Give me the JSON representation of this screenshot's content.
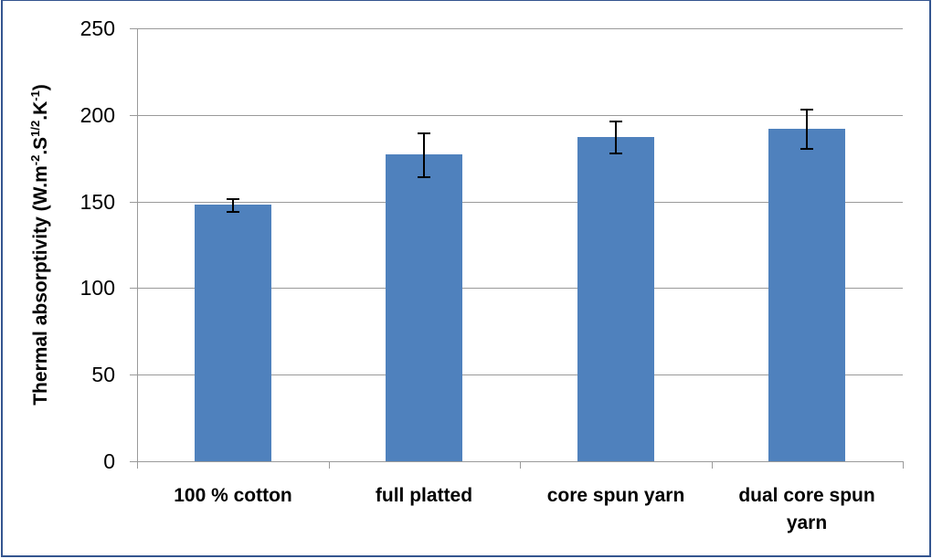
{
  "chart_data": {
    "type": "bar",
    "title": "",
    "xlabel": "",
    "ylabel": "Thermal absorptivity (W.m-2.S1/2.K-1)",
    "ylabel_parts": {
      "prefix": "Thermal absorptivity (W.m",
      "sup1": "-2",
      "mid1": ".S",
      "sup2": "1/2",
      "mid2": ".K",
      "sup3": "-1",
      "suffix": ")"
    },
    "ylim": [
      0,
      250
    ],
    "yticks": [
      0,
      50,
      100,
      150,
      200,
      250
    ],
    "grid": true,
    "legend": null,
    "categories": [
      "100 % cotton",
      "full platted",
      "core spun yarn",
      "dual core spun yarn"
    ],
    "category_labels": [
      [
        "100 % cotton"
      ],
      [
        "full platted"
      ],
      [
        "core spun yarn"
      ],
      [
        "dual core spun",
        "yarn"
      ]
    ],
    "values": [
      148,
      177,
      187,
      192
    ],
    "error": [
      4,
      13,
      9.5,
      11.5
    ],
    "colors": {
      "bar": "#4f81bd",
      "grid": "#9a9a9a",
      "error_bar": "#000000",
      "frame": "#34558f"
    }
  }
}
